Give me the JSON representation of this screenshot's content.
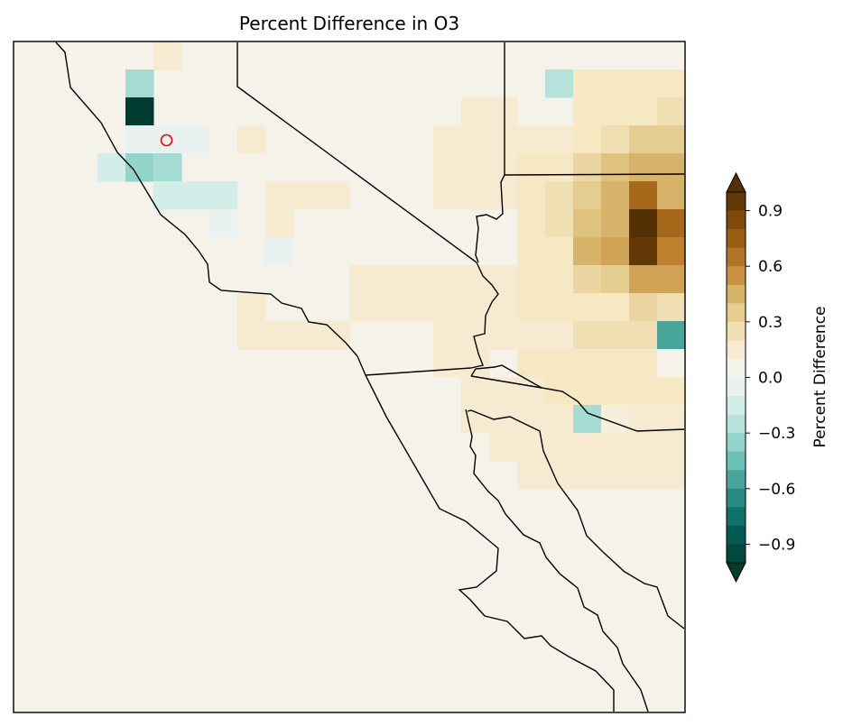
{
  "chart_data": {
    "type": "heatmap",
    "title": "Percent Difference in O3",
    "colorbar": {
      "label": "Percent Difference",
      "ticks": [
        "−0.9",
        "−0.6",
        "−0.3",
        "0.0",
        "0.3",
        "0.6",
        "0.9"
      ],
      "range": [
        -1.0,
        1.0
      ],
      "extend": "both",
      "colormap": [
        "#003c30",
        "#01665e",
        "#35978f",
        "#80cdc1",
        "#c7eae5",
        "#f5f5f5",
        "#f6e8c3",
        "#dfc27d",
        "#bf812d",
        "#8c510a",
        "#543005"
      ]
    },
    "background_value": 0.05,
    "cells": [
      {
        "row": 0,
        "col": 5,
        "value": 0.15
      },
      {
        "row": 1,
        "col": 4,
        "value": -0.3
      },
      {
        "row": 1,
        "col": 19,
        "value": -0.25
      },
      {
        "row": 1,
        "col": 20,
        "value": 0.2
      },
      {
        "row": 1,
        "col": 21,
        "value": 0.2
      },
      {
        "row": 1,
        "col": 22,
        "value": 0.2
      },
      {
        "row": 1,
        "col": 23,
        "value": 0.2
      },
      {
        "row": 1,
        "col": 24,
        "value": 0.25
      },
      {
        "row": 2,
        "col": 4,
        "value": -1.0
      },
      {
        "row": 2,
        "col": 16,
        "value": 0.15
      },
      {
        "row": 2,
        "col": 17,
        "value": 0.15
      },
      {
        "row": 2,
        "col": 20,
        "value": 0.2
      },
      {
        "row": 2,
        "col": 21,
        "value": 0.2
      },
      {
        "row": 2,
        "col": 22,
        "value": 0.2
      },
      {
        "row": 2,
        "col": 23,
        "value": 0.25
      },
      {
        "row": 2,
        "col": 24,
        "value": 0.3
      },
      {
        "row": 3,
        "col": 4,
        "value": -0.05
      },
      {
        "row": 3,
        "col": 5,
        "value": -0.05
      },
      {
        "row": 3,
        "col": 6,
        "value": -0.05
      },
      {
        "row": 3,
        "col": 8,
        "value": 0.15
      },
      {
        "row": 3,
        "col": 15,
        "value": 0.15
      },
      {
        "row": 3,
        "col": 16,
        "value": 0.15
      },
      {
        "row": 3,
        "col": 17,
        "value": 0.15
      },
      {
        "row": 3,
        "col": 18,
        "value": 0.15
      },
      {
        "row": 3,
        "col": 19,
        "value": 0.15
      },
      {
        "row": 3,
        "col": 20,
        "value": 0.2
      },
      {
        "row": 3,
        "col": 21,
        "value": 0.25
      },
      {
        "row": 3,
        "col": 22,
        "value": 0.35
      },
      {
        "row": 3,
        "col": 23,
        "value": 0.35
      },
      {
        "row": 3,
        "col": 24,
        "value": 0.3
      },
      {
        "row": 4,
        "col": 3,
        "value": -0.15
      },
      {
        "row": 4,
        "col": 4,
        "value": -0.35
      },
      {
        "row": 4,
        "col": 5,
        "value": -0.3
      },
      {
        "row": 4,
        "col": 15,
        "value": 0.15
      },
      {
        "row": 4,
        "col": 16,
        "value": 0.15
      },
      {
        "row": 4,
        "col": 17,
        "value": 0.15
      },
      {
        "row": 4,
        "col": 18,
        "value": 0.2
      },
      {
        "row": 4,
        "col": 19,
        "value": 0.2
      },
      {
        "row": 4,
        "col": 20,
        "value": 0.3
      },
      {
        "row": 4,
        "col": 21,
        "value": 0.4
      },
      {
        "row": 4,
        "col": 22,
        "value": 0.45
      },
      {
        "row": 4,
        "col": 23,
        "value": 0.45
      },
      {
        "row": 4,
        "col": 24,
        "value": 0.35
      },
      {
        "row": 5,
        "col": 5,
        "value": -0.15
      },
      {
        "row": 5,
        "col": 6,
        "value": -0.15
      },
      {
        "row": 5,
        "col": 7,
        "value": -0.15
      },
      {
        "row": 5,
        "col": 9,
        "value": 0.15
      },
      {
        "row": 5,
        "col": 10,
        "value": 0.15
      },
      {
        "row": 5,
        "col": 11,
        "value": 0.15
      },
      {
        "row": 5,
        "col": 15,
        "value": 0.15
      },
      {
        "row": 5,
        "col": 16,
        "value": 0.15
      },
      {
        "row": 5,
        "col": 17,
        "value": 0.15
      },
      {
        "row": 5,
        "col": 18,
        "value": 0.2
      },
      {
        "row": 5,
        "col": 19,
        "value": 0.25
      },
      {
        "row": 5,
        "col": 20,
        "value": 0.35
      },
      {
        "row": 5,
        "col": 21,
        "value": 0.45
      },
      {
        "row": 5,
        "col": 22,
        "value": 0.7
      },
      {
        "row": 5,
        "col": 23,
        "value": 0.45
      },
      {
        "row": 5,
        "col": 24,
        "value": 0.4
      },
      {
        "row": 6,
        "col": 7,
        "value": -0.05
      },
      {
        "row": 6,
        "col": 9,
        "value": 0.15
      },
      {
        "row": 6,
        "col": 18,
        "value": 0.2
      },
      {
        "row": 6,
        "col": 19,
        "value": 0.25
      },
      {
        "row": 6,
        "col": 20,
        "value": 0.4
      },
      {
        "row": 6,
        "col": 21,
        "value": 0.45
      },
      {
        "row": 6,
        "col": 22,
        "value": 1.0
      },
      {
        "row": 6,
        "col": 23,
        "value": 0.7
      },
      {
        "row": 6,
        "col": 24,
        "value": 0.45
      },
      {
        "row": 7,
        "col": 9,
        "value": -0.05
      },
      {
        "row": 7,
        "col": 18,
        "value": 0.2
      },
      {
        "row": 7,
        "col": 19,
        "value": 0.2
      },
      {
        "row": 7,
        "col": 20,
        "value": 0.45
      },
      {
        "row": 7,
        "col": 21,
        "value": 0.5
      },
      {
        "row": 7,
        "col": 22,
        "value": 0.95
      },
      {
        "row": 7,
        "col": 23,
        "value": 0.6
      },
      {
        "row": 7,
        "col": 24,
        "value": 0.45
      },
      {
        "row": 8,
        "col": 12,
        "value": 0.15
      },
      {
        "row": 8,
        "col": 13,
        "value": 0.15
      },
      {
        "row": 8,
        "col": 14,
        "value": 0.15
      },
      {
        "row": 8,
        "col": 15,
        "value": 0.15
      },
      {
        "row": 8,
        "col": 16,
        "value": 0.15
      },
      {
        "row": 8,
        "col": 17,
        "value": 0.15
      },
      {
        "row": 8,
        "col": 18,
        "value": 0.2
      },
      {
        "row": 8,
        "col": 19,
        "value": 0.2
      },
      {
        "row": 8,
        "col": 20,
        "value": 0.3
      },
      {
        "row": 8,
        "col": 21,
        "value": 0.35
      },
      {
        "row": 8,
        "col": 22,
        "value": 0.5
      },
      {
        "row": 8,
        "col": 23,
        "value": 0.5
      },
      {
        "row": 8,
        "col": 24,
        "value": 0.45
      },
      {
        "row": 9,
        "col": 8,
        "value": 0.15
      },
      {
        "row": 9,
        "col": 12,
        "value": 0.15
      },
      {
        "row": 9,
        "col": 13,
        "value": 0.15
      },
      {
        "row": 9,
        "col": 14,
        "value": 0.15
      },
      {
        "row": 9,
        "col": 15,
        "value": 0.15
      },
      {
        "row": 9,
        "col": 16,
        "value": 0.15
      },
      {
        "row": 9,
        "col": 17,
        "value": 0.15
      },
      {
        "row": 9,
        "col": 18,
        "value": 0.2
      },
      {
        "row": 9,
        "col": 19,
        "value": 0.2
      },
      {
        "row": 9,
        "col": 20,
        "value": 0.2
      },
      {
        "row": 9,
        "col": 21,
        "value": 0.2
      },
      {
        "row": 9,
        "col": 22,
        "value": 0.3
      },
      {
        "row": 9,
        "col": 23,
        "value": 0.25
      },
      {
        "row": 9,
        "col": 24,
        "value": 0.2
      },
      {
        "row": 10,
        "col": 8,
        "value": 0.15
      },
      {
        "row": 10,
        "col": 9,
        "value": 0.15
      },
      {
        "row": 10,
        "col": 10,
        "value": 0.15
      },
      {
        "row": 10,
        "col": 11,
        "value": 0.15
      },
      {
        "row": 10,
        "col": 15,
        "value": 0.15
      },
      {
        "row": 10,
        "col": 16,
        "value": 0.15
      },
      {
        "row": 10,
        "col": 17,
        "value": 0.15
      },
      {
        "row": 10,
        "col": 18,
        "value": 0.15
      },
      {
        "row": 10,
        "col": 19,
        "value": 0.15
      },
      {
        "row": 10,
        "col": 20,
        "value": 0.25
      },
      {
        "row": 10,
        "col": 21,
        "value": 0.25
      },
      {
        "row": 10,
        "col": 22,
        "value": 0.25
      },
      {
        "row": 10,
        "col": 23,
        "value": -0.55
      },
      {
        "row": 10,
        "col": 24,
        "value": 0.1
      },
      {
        "row": 11,
        "col": 15,
        "value": 0.15
      },
      {
        "row": 11,
        "col": 16,
        "value": 0.15
      },
      {
        "row": 11,
        "col": 18,
        "value": 0.2
      },
      {
        "row": 11,
        "col": 19,
        "value": 0.2
      },
      {
        "row": 11,
        "col": 20,
        "value": 0.2
      },
      {
        "row": 11,
        "col": 21,
        "value": 0.2
      },
      {
        "row": 11,
        "col": 22,
        "value": 0.2
      },
      {
        "row": 11,
        "col": 23,
        "value": 0.05
      },
      {
        "row": 11,
        "col": 24,
        "value": 0.2
      },
      {
        "row": 12,
        "col": 16,
        "value": 0.15
      },
      {
        "row": 12,
        "col": 17,
        "value": 0.15
      },
      {
        "row": 12,
        "col": 18,
        "value": 0.15
      },
      {
        "row": 12,
        "col": 19,
        "value": 0.2
      },
      {
        "row": 12,
        "col": 20,
        "value": 0.2
      },
      {
        "row": 12,
        "col": 21,
        "value": 0.2
      },
      {
        "row": 12,
        "col": 22,
        "value": 0.2
      },
      {
        "row": 12,
        "col": 23,
        "value": 0.2
      },
      {
        "row": 12,
        "col": 24,
        "value": 0.2
      },
      {
        "row": 13,
        "col": 16,
        "value": 0.15
      },
      {
        "row": 13,
        "col": 17,
        "value": 0.15
      },
      {
        "row": 13,
        "col": 18,
        "value": 0.15
      },
      {
        "row": 13,
        "col": 19,
        "value": 0.15
      },
      {
        "row": 13,
        "col": 20,
        "value": -0.3
      },
      {
        "row": 13,
        "col": 21,
        "value": 0.1
      },
      {
        "row": 13,
        "col": 22,
        "value": 0.15
      },
      {
        "row": 13,
        "col": 23,
        "value": 0.15
      },
      {
        "row": 13,
        "col": 24,
        "value": 0.15
      },
      {
        "row": 14,
        "col": 17,
        "value": 0.15
      },
      {
        "row": 14,
        "col": 18,
        "value": 0.15
      },
      {
        "row": 14,
        "col": 19,
        "value": 0.15
      },
      {
        "row": 14,
        "col": 20,
        "value": 0.15
      },
      {
        "row": 14,
        "col": 21,
        "value": 0.15
      },
      {
        "row": 14,
        "col": 22,
        "value": 0.15
      },
      {
        "row": 14,
        "col": 23,
        "value": 0.15
      },
      {
        "row": 14,
        "col": 24,
        "value": 0.15
      },
      {
        "row": 15,
        "col": 18,
        "value": 0.15
      },
      {
        "row": 15,
        "col": 19,
        "value": 0.15
      },
      {
        "row": 15,
        "col": 20,
        "value": 0.15
      },
      {
        "row": 15,
        "col": 21,
        "value": 0.15
      },
      {
        "row": 15,
        "col": 22,
        "value": 0.15
      },
      {
        "row": 15,
        "col": 23,
        "value": 0.15
      },
      {
        "row": 15,
        "col": 24,
        "value": 0.15
      }
    ],
    "marker": {
      "row": 3,
      "col": 5,
      "color": "#ff0000"
    }
  }
}
